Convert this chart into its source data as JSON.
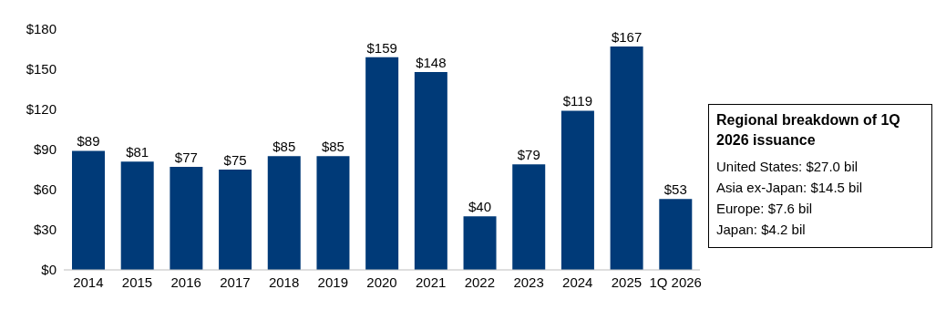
{
  "chart_data": {
    "type": "bar",
    "categories": [
      "2014",
      "2015",
      "2016",
      "2017",
      "2018",
      "2019",
      "2020",
      "2021",
      "2022",
      "2023",
      "2024",
      "2025",
      "1Q 2026"
    ],
    "values": [
      89,
      81,
      77,
      75,
      85,
      85,
      159,
      148,
      40,
      79,
      119,
      167,
      53
    ],
    "value_labels": [
      "$89",
      "$81",
      "$77",
      "$75",
      "$85",
      "$85",
      "$159",
      "$148",
      "$40",
      "$79",
      "$119",
      "$167",
      "$53"
    ],
    "color": "#003a78",
    "ylim": [
      0,
      180
    ],
    "yticks": [
      {
        "value": 0,
        "label": "$0"
      },
      {
        "value": 30,
        "label": "$30"
      },
      {
        "value": 60,
        "label": "$60"
      },
      {
        "value": 90,
        "label": "$90"
      },
      {
        "value": 120,
        "label": "$120"
      },
      {
        "value": 150,
        "label": "$150"
      },
      {
        "value": 180,
        "label": "$180"
      }
    ],
    "grid": false,
    "annotations": [
      "Regional breakdown of 1Q 2026 issuance",
      "United States: $27.0 bil",
      "Asia ex-Japan: $14.5 bil",
      "Europe: $7.6 bil",
      "Japan: $4.2 bil"
    ]
  }
}
